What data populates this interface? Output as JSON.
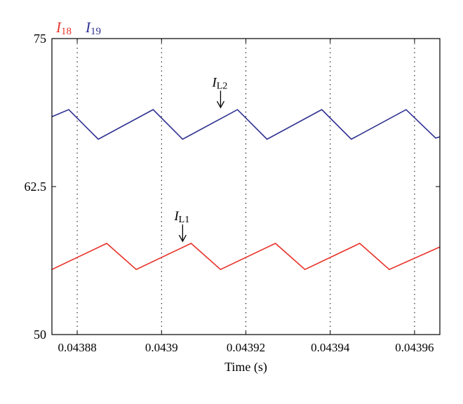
{
  "chart_data": {
    "type": "line",
    "title": "",
    "xlabel": "Time (s)",
    "ylabel": "",
    "xlim": [
      0.043874,
      0.043966
    ],
    "ylim": [
      50,
      75
    ],
    "x_ticks": [
      {
        "value": 0.04388,
        "label": "0.04388"
      },
      {
        "value": 0.0439,
        "label": "0.0439"
      },
      {
        "value": 0.04392,
        "label": "0.04392"
      },
      {
        "value": 0.04394,
        "label": "0.04394"
      },
      {
        "value": 0.04396,
        "label": "0.04396"
      }
    ],
    "y_ticks": [
      {
        "value": 50,
        "label": "50"
      },
      {
        "value": 62.5,
        "label": "62.5"
      },
      {
        "value": 75,
        "label": "75"
      }
    ],
    "vertical_gridlines": "dotted",
    "legend": {
      "position": "top-left",
      "entries": [
        {
          "series_index": 0,
          "symbol": "I",
          "subscript": "18"
        },
        {
          "series_index": 1,
          "symbol": "I",
          "subscript": "19"
        }
      ]
    },
    "series": [
      {
        "name": "I18",
        "color": "#e8332a",
        "x": [
          0.043874,
          0.043887,
          0.043894,
          0.043907,
          0.043914,
          0.043927,
          0.043934,
          0.043947,
          0.043954,
          0.043966
        ],
        "y": [
          55.5,
          57.7,
          55.5,
          57.7,
          55.5,
          57.7,
          55.5,
          57.7,
          55.5,
          57.4
        ]
      },
      {
        "name": "I19",
        "color": "#2e3191",
        "x": [
          0.043874,
          0.043878,
          0.043885,
          0.043898,
          0.043905,
          0.043918,
          0.043925,
          0.043938,
          0.043945,
          0.043958,
          0.043965,
          0.043966
        ],
        "y": [
          68.4,
          69.0,
          66.5,
          69.0,
          66.5,
          69.0,
          66.5,
          69.0,
          66.5,
          69.0,
          66.6,
          66.7
        ]
      }
    ],
    "annotations": [
      {
        "symbol": "I",
        "subscript": "L2",
        "x": 0.043914,
        "y": 69.0
      },
      {
        "symbol": "I",
        "subscript": "L1",
        "x": 0.043905,
        "y": 57.7
      }
    ]
  }
}
